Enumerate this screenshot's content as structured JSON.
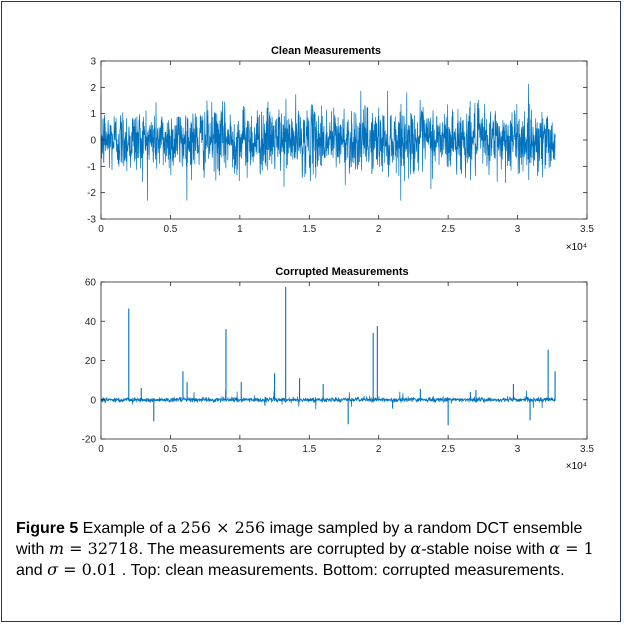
{
  "chart_data": [
    {
      "type": "line",
      "title": "Clean Measurements",
      "xlim": [
        0,
        35000
      ],
      "ylim": [
        -3,
        3
      ],
      "x_ticks": [
        "0",
        "0.5",
        "1",
        "1.5",
        "2",
        "2.5",
        "3",
        "3.5"
      ],
      "y_ticks": [
        "-3",
        "-2",
        "-1",
        "0",
        "1",
        "2",
        "3"
      ],
      "x_exponent_label": "×10⁴",
      "n_points": 32718,
      "color": "#0072BD",
      "grid": false
    },
    {
      "type": "line",
      "title": "Corrupted Measurements",
      "xlim": [
        0,
        35000
      ],
      "ylim": [
        -20,
        60
      ],
      "x_ticks": [
        "0",
        "0.5",
        "1",
        "1.5",
        "2",
        "2.5",
        "3",
        "3.5"
      ],
      "y_ticks": [
        "-20",
        "0",
        "20",
        "40",
        "60"
      ],
      "x_exponent_label": "×10⁴",
      "n_points": 32718,
      "color": "#0072BD",
      "grid": false,
      "spikes": [
        {
          "x": 2000,
          "y": 46.5
        },
        {
          "x": 9000,
          "y": 36
        },
        {
          "x": 13300,
          "y": 57.5
        },
        {
          "x": 19600,
          "y": 34
        },
        {
          "x": 19900,
          "y": 37.5
        },
        {
          "x": 12500,
          "y": 13.5
        },
        {
          "x": 14300,
          "y": 11
        },
        {
          "x": 5900,
          "y": 14.5
        },
        {
          "x": 6200,
          "y": 9
        },
        {
          "x": 10100,
          "y": 9
        },
        {
          "x": 25000,
          "y": -13
        },
        {
          "x": 17800,
          "y": -12.5
        },
        {
          "x": 32200,
          "y": 25.5
        },
        {
          "x": 29700,
          "y": 8
        },
        {
          "x": 3800,
          "y": -11
        },
        {
          "x": 30900,
          "y": -10.5
        },
        {
          "x": 26600,
          "y": 4
        },
        {
          "x": 27000,
          "y": 5
        },
        {
          "x": 32700,
          "y": 14.5
        },
        {
          "x": 16000,
          "y": 8
        },
        {
          "x": 23000,
          "y": 5.5
        },
        {
          "x": 2900,
          "y": 6
        },
        {
          "x": 21000,
          "y": -4.5
        },
        {
          "x": 11800,
          "y": -3
        }
      ]
    }
  ],
  "caption": {
    "label": "Figure 5",
    "t1": " Example of a ",
    "m1": "256 × 256",
    "t2": " image sampled by a random DCT ensemble with ",
    "m2": "m",
    "m2b": " = 32718",
    "t3": ". The measurements are corrupted by ",
    "m3": "α",
    "t4": "-stable noise with ",
    "m4": "α",
    "m4b": " = 1",
    "t5": " and ",
    "m5": "σ",
    "m5b": " = 0.01",
    "t6": " . Top: clean measurements. Bottom: corrupted measurements."
  }
}
